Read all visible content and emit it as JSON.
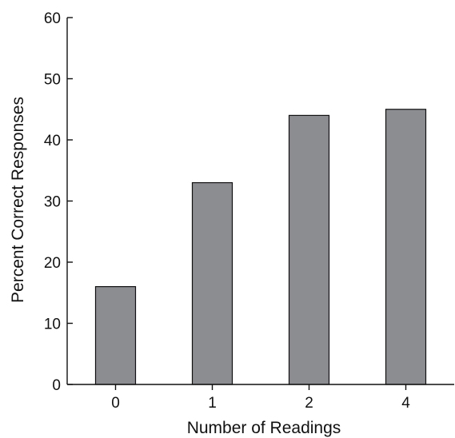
{
  "chart_data": {
    "type": "bar",
    "title": "",
    "xlabel": "Number of Readings",
    "ylabel": "Percent Correct Responses",
    "categories": [
      "0",
      "1",
      "2",
      "4"
    ],
    "values": [
      16,
      33,
      44,
      45
    ],
    "ylim": [
      0,
      60
    ],
    "yticks": [
      0,
      10,
      20,
      30,
      40,
      50,
      60
    ],
    "grid": false,
    "legend": "none",
    "colors": {
      "bar_fill": "#8c8d91",
      "bar_stroke": "#111111",
      "axis": "#111111"
    }
  }
}
